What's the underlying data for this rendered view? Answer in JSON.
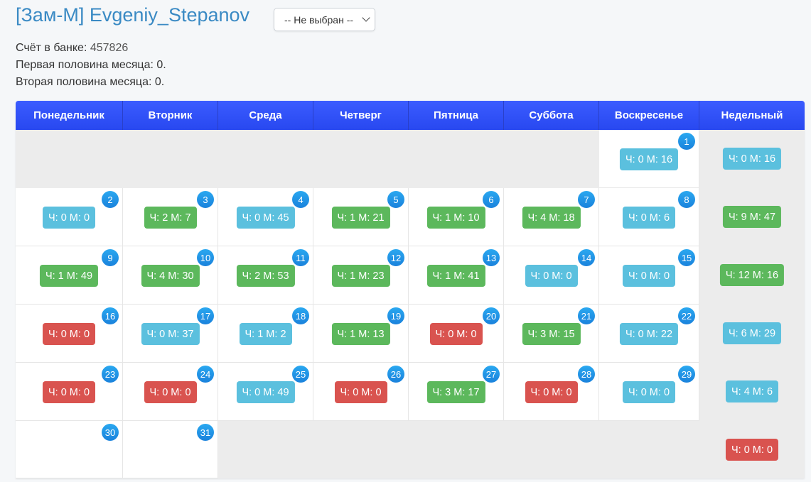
{
  "header": {
    "title": "[Зам-М] Evgeniy_Stepanov",
    "select_value": "-- Не выбран --"
  },
  "info": {
    "bank_label": "Счёт в банке:",
    "bank_value": "457826",
    "first_half": "Первая половина месяца: 0.",
    "second_half": "Вторая половина месяца: 0."
  },
  "colors": {
    "blue": "#5bc0de",
    "green": "#5cb85c",
    "red": "#d9534f"
  },
  "calendar": {
    "columns": [
      "Понедельник",
      "Вторник",
      "Среда",
      "Четверг",
      "Пятница",
      "Суббота",
      "Воскресенье",
      "Недельный"
    ],
    "first_weekday": 6,
    "days": [
      {
        "day": "1",
        "label": "Ч: 0 М: 16",
        "color": "blue"
      },
      {
        "day": "2",
        "label": "Ч: 0 М: 0",
        "color": "blue"
      },
      {
        "day": "3",
        "label": "Ч: 2 М: 7",
        "color": "green"
      },
      {
        "day": "4",
        "label": "Ч: 0 М: 45",
        "color": "blue"
      },
      {
        "day": "5",
        "label": "Ч: 1 М: 21",
        "color": "green"
      },
      {
        "day": "6",
        "label": "Ч: 1 М: 10",
        "color": "green"
      },
      {
        "day": "7",
        "label": "Ч: 4 М: 18",
        "color": "green"
      },
      {
        "day": "8",
        "label": "Ч: 0 М: 6",
        "color": "blue"
      },
      {
        "day": "9",
        "label": "Ч: 1 М: 49",
        "color": "green"
      },
      {
        "day": "10",
        "label": "Ч: 4 М: 30",
        "color": "green"
      },
      {
        "day": "11",
        "label": "Ч: 2 М: 53",
        "color": "green"
      },
      {
        "day": "12",
        "label": "Ч: 1 М: 23",
        "color": "green"
      },
      {
        "day": "13",
        "label": "Ч: 1 М: 41",
        "color": "green"
      },
      {
        "day": "14",
        "label": "Ч: 0 М: 0",
        "color": "blue"
      },
      {
        "day": "15",
        "label": "Ч: 0 М: 0",
        "color": "blue"
      },
      {
        "day": "16",
        "label": "Ч: 0 М: 0",
        "color": "red"
      },
      {
        "day": "17",
        "label": "Ч: 0 М: 37",
        "color": "blue"
      },
      {
        "day": "18",
        "label": "Ч: 1 М: 2",
        "color": "blue"
      },
      {
        "day": "19",
        "label": "Ч: 1 М: 13",
        "color": "green"
      },
      {
        "day": "20",
        "label": "Ч: 0 М: 0",
        "color": "red"
      },
      {
        "day": "21",
        "label": "Ч: 3 М: 15",
        "color": "green"
      },
      {
        "day": "22",
        "label": "Ч: 0 М: 22",
        "color": "blue"
      },
      {
        "day": "23",
        "label": "Ч: 0 М: 0",
        "color": "red"
      },
      {
        "day": "24",
        "label": "Ч: 0 М: 0",
        "color": "red"
      },
      {
        "day": "25",
        "label": "Ч: 0 М: 49",
        "color": "blue"
      },
      {
        "day": "26",
        "label": "Ч: 0 М: 0",
        "color": "red"
      },
      {
        "day": "27",
        "label": "Ч: 3 М: 17",
        "color": "green"
      },
      {
        "day": "28",
        "label": "Ч: 0 М: 0",
        "color": "red"
      },
      {
        "day": "29",
        "label": "Ч: 0 М: 0",
        "color": "blue"
      },
      {
        "day": "30",
        "label": "",
        "color": ""
      },
      {
        "day": "31",
        "label": "",
        "color": ""
      }
    ],
    "weekly": [
      {
        "label": "Ч: 0 М: 16",
        "color": "blue"
      },
      {
        "label": "Ч: 9 М: 47",
        "color": "green"
      },
      {
        "label": "Ч: 12 М: 16",
        "color": "green"
      },
      {
        "label": "Ч: 6 М: 29",
        "color": "blue"
      },
      {
        "label": "Ч: 4 М: 6",
        "color": "blue"
      },
      {
        "label": "Ч: 0 М: 0",
        "color": "red"
      }
    ]
  }
}
